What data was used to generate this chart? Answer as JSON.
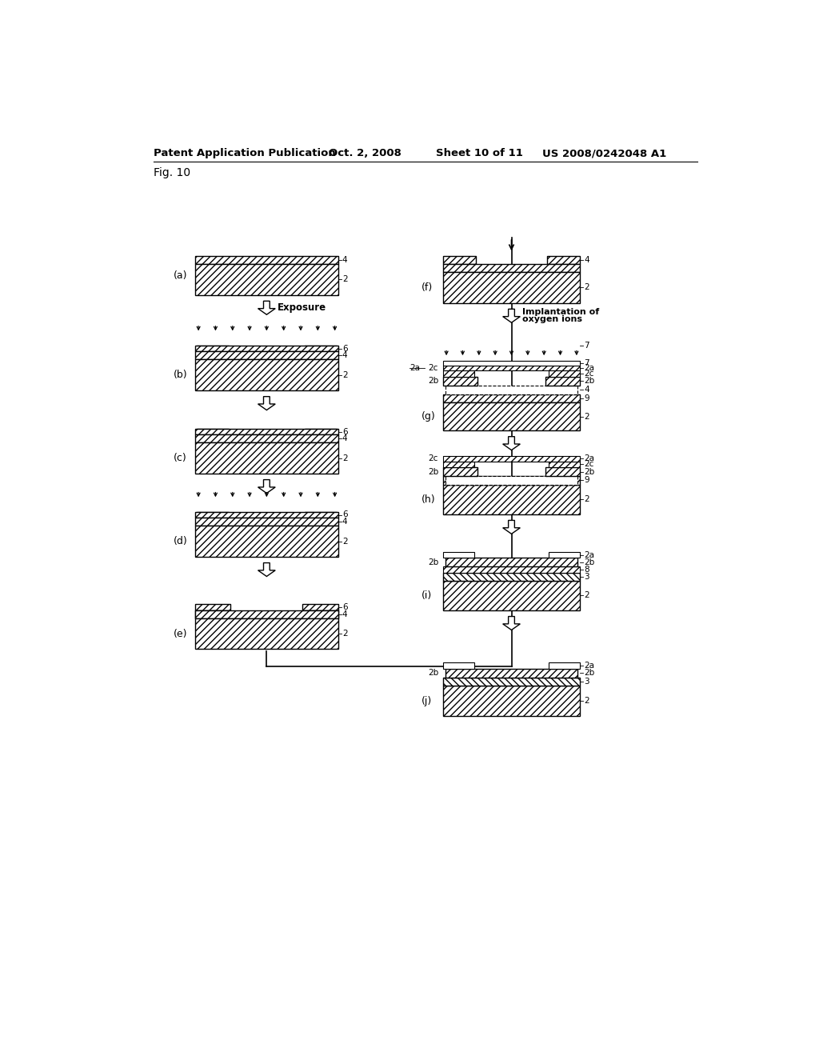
{
  "title_header": "Patent Application Publication",
  "date_header": "Oct. 2, 2008",
  "sheet_header": "Sheet 10 of 11",
  "patent_header": "US 2008/0242048 A1",
  "fig_label": "Fig. 10",
  "bg": "#ffffff"
}
